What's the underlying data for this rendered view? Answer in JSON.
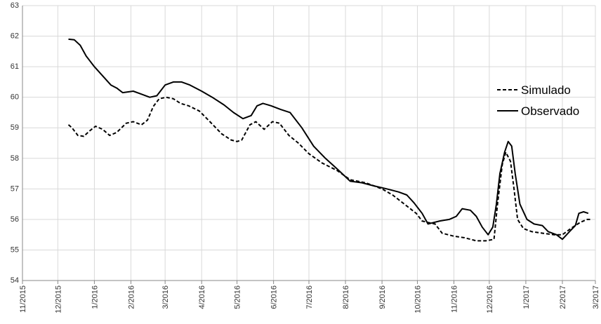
{
  "chart_data": {
    "type": "line",
    "title": "",
    "xlabel": "",
    "ylabel": "",
    "ylim": [
      54,
      63
    ],
    "xlim": [
      "2015-11-01",
      "2017-03-01"
    ],
    "grid": true,
    "legend_position": "right",
    "y_ticks": [
      "54",
      "55",
      "56",
      "57",
      "58",
      "59",
      "60",
      "61",
      "62",
      "63"
    ],
    "x_ticks": [
      "11/2015",
      "12/2015",
      "1/2016",
      "2/2016",
      "3/2016",
      "4/2016",
      "5/2016",
      "6/2016",
      "7/2016",
      "8/2016",
      "9/2016",
      "10/2016",
      "11/2016",
      "12/2016",
      "1/2017",
      "2/2017",
      "3/2017"
    ],
    "series": [
      {
        "name": "Simulado",
        "style": "dashed",
        "color": "#000000",
        "points": [
          [
            "2015-12-10",
            59.1
          ],
          [
            "2015-12-13",
            59.0
          ],
          [
            "2015-12-18",
            58.75
          ],
          [
            "2015-12-23",
            58.72
          ],
          [
            "2015-12-28",
            58.9
          ],
          [
            "2016-01-02",
            59.05
          ],
          [
            "2016-01-08",
            58.95
          ],
          [
            "2016-01-14",
            58.75
          ],
          [
            "2016-01-20",
            58.85
          ],
          [
            "2016-01-28",
            59.15
          ],
          [
            "2016-02-03",
            59.2
          ],
          [
            "2016-02-10",
            59.1
          ],
          [
            "2016-02-15",
            59.25
          ],
          [
            "2016-02-20",
            59.7
          ],
          [
            "2016-02-25",
            59.95
          ],
          [
            "2016-03-02",
            60.0
          ],
          [
            "2016-03-08",
            59.95
          ],
          [
            "2016-03-14",
            59.8
          ],
          [
            "2016-03-21",
            59.72
          ],
          [
            "2016-03-30",
            59.55
          ],
          [
            "2016-04-08",
            59.2
          ],
          [
            "2016-04-18",
            58.8
          ],
          [
            "2016-04-26",
            58.6
          ],
          [
            "2016-05-01",
            58.55
          ],
          [
            "2016-05-05",
            58.6
          ],
          [
            "2016-05-12",
            59.1
          ],
          [
            "2016-05-17",
            59.2
          ],
          [
            "2016-05-24",
            58.95
          ],
          [
            "2016-05-31",
            59.2
          ],
          [
            "2016-06-06",
            59.15
          ],
          [
            "2016-06-14",
            58.75
          ],
          [
            "2016-06-22",
            58.5
          ],
          [
            "2016-07-01",
            58.15
          ],
          [
            "2016-07-12",
            57.85
          ],
          [
            "2016-07-25",
            57.6
          ],
          [
            "2016-08-05",
            57.3
          ],
          [
            "2016-08-18",
            57.2
          ],
          [
            "2016-09-01",
            57.0
          ],
          [
            "2016-09-10",
            56.8
          ],
          [
            "2016-09-20",
            56.5
          ],
          [
            "2016-09-30",
            56.2
          ],
          [
            "2016-10-05",
            55.95
          ],
          [
            "2016-10-10",
            55.9
          ],
          [
            "2016-10-16",
            55.85
          ],
          [
            "2016-10-22",
            55.55
          ],
          [
            "2016-11-01",
            55.45
          ],
          [
            "2016-11-10",
            55.4
          ],
          [
            "2016-11-20",
            55.3
          ],
          [
            "2016-11-28",
            55.3
          ],
          [
            "2016-12-05",
            55.35
          ],
          [
            "2016-12-08",
            56.5
          ],
          [
            "2016-12-12",
            57.8
          ],
          [
            "2016-12-15",
            58.2
          ],
          [
            "2016-12-19",
            57.9
          ],
          [
            "2016-12-22",
            57.0
          ],
          [
            "2016-12-25",
            56.0
          ],
          [
            "2016-12-30",
            55.7
          ],
          [
            "2017-01-06",
            55.6
          ],
          [
            "2017-01-15",
            55.55
          ],
          [
            "2017-01-25",
            55.5
          ],
          [
            "2017-02-01",
            55.5
          ],
          [
            "2017-02-08",
            55.7
          ],
          [
            "2017-02-16",
            55.9
          ],
          [
            "2017-02-22",
            56.0
          ],
          [
            "2017-02-25",
            56.0
          ]
        ]
      },
      {
        "name": "Observado",
        "style": "solid",
        "color": "#000000",
        "points": [
          [
            "2015-12-10",
            61.9
          ],
          [
            "2015-12-15",
            61.88
          ],
          [
            "2015-12-20",
            61.7
          ],
          [
            "2015-12-25",
            61.35
          ],
          [
            "2016-01-01",
            61.0
          ],
          [
            "2016-01-08",
            60.7
          ],
          [
            "2016-01-15",
            60.4
          ],
          [
            "2016-01-20",
            60.3
          ],
          [
            "2016-01-25",
            60.15
          ],
          [
            "2016-02-03",
            60.2
          ],
          [
            "2016-02-10",
            60.1
          ],
          [
            "2016-02-17",
            60.0
          ],
          [
            "2016-02-23",
            60.05
          ],
          [
            "2016-03-01",
            60.4
          ],
          [
            "2016-03-08",
            60.5
          ],
          [
            "2016-03-15",
            60.5
          ],
          [
            "2016-03-22",
            60.4
          ],
          [
            "2016-04-01",
            60.2
          ],
          [
            "2016-04-10",
            60.0
          ],
          [
            "2016-04-20",
            59.75
          ],
          [
            "2016-04-28",
            59.5
          ],
          [
            "2016-05-06",
            59.3
          ],
          [
            "2016-05-13",
            59.4
          ],
          [
            "2016-05-18",
            59.72
          ],
          [
            "2016-05-23",
            59.8
          ],
          [
            "2016-05-30",
            59.72
          ],
          [
            "2016-06-07",
            59.6
          ],
          [
            "2016-06-15",
            59.5
          ],
          [
            "2016-06-25",
            59.0
          ],
          [
            "2016-07-05",
            58.4
          ],
          [
            "2016-07-15",
            58.0
          ],
          [
            "2016-07-25",
            57.65
          ],
          [
            "2016-08-05",
            57.25
          ],
          [
            "2016-08-15",
            57.2
          ],
          [
            "2016-08-25",
            57.1
          ],
          [
            "2016-09-05",
            57.0
          ],
          [
            "2016-09-15",
            56.9
          ],
          [
            "2016-09-22",
            56.8
          ],
          [
            "2016-09-28",
            56.55
          ],
          [
            "2016-10-05",
            56.2
          ],
          [
            "2016-10-10",
            55.85
          ],
          [
            "2016-10-15",
            55.9
          ],
          [
            "2016-10-20",
            55.95
          ],
          [
            "2016-10-28",
            56.0
          ],
          [
            "2016-11-03",
            56.1
          ],
          [
            "2016-11-08",
            56.35
          ],
          [
            "2016-11-15",
            56.3
          ],
          [
            "2016-11-20",
            56.1
          ],
          [
            "2016-11-25",
            55.75
          ],
          [
            "2016-11-30",
            55.5
          ],
          [
            "2016-12-04",
            55.75
          ],
          [
            "2016-12-07",
            56.5
          ],
          [
            "2016-12-10",
            57.5
          ],
          [
            "2016-12-14",
            58.2
          ],
          [
            "2016-12-17",
            58.55
          ],
          [
            "2016-12-20",
            58.4
          ],
          [
            "2016-12-23",
            57.5
          ],
          [
            "2016-12-27",
            56.5
          ],
          [
            "2017-01-02",
            56.0
          ],
          [
            "2017-01-08",
            55.85
          ],
          [
            "2017-01-15",
            55.8
          ],
          [
            "2017-01-20",
            55.6
          ],
          [
            "2017-01-27",
            55.5
          ],
          [
            "2017-02-01",
            55.35
          ],
          [
            "2017-02-07",
            55.6
          ],
          [
            "2017-02-12",
            55.8
          ],
          [
            "2017-02-15",
            56.2
          ],
          [
            "2017-02-19",
            56.25
          ],
          [
            "2017-02-23",
            56.2
          ]
        ]
      }
    ]
  }
}
